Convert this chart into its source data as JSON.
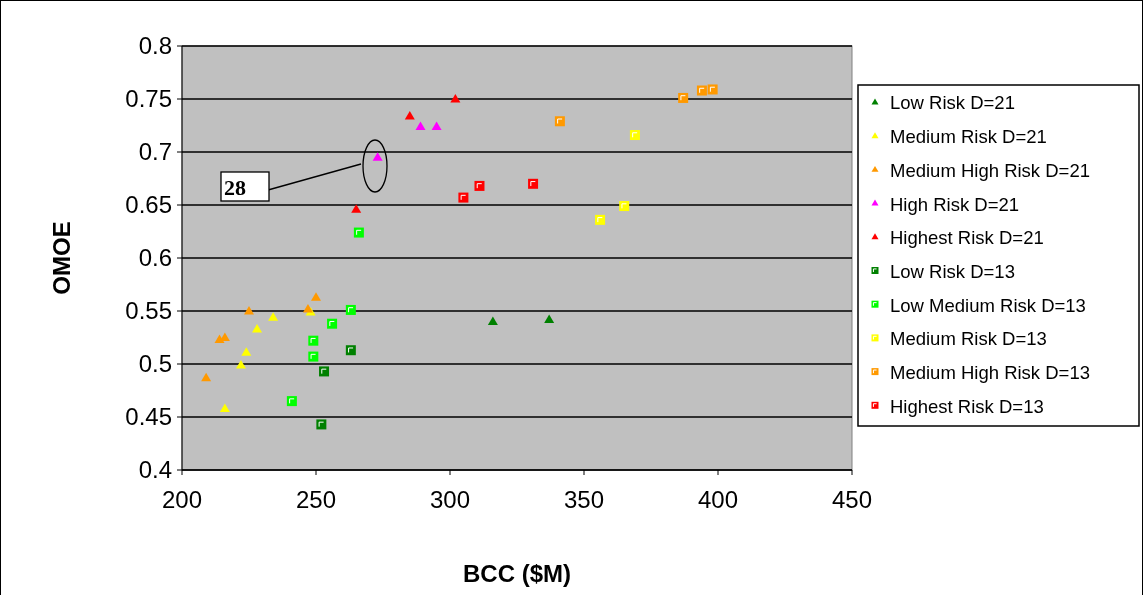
{
  "chart_data": {
    "type": "scatter",
    "xlabel": "BCC ($M)",
    "ylabel": "OMOE",
    "xlim": [
      200,
      450
    ],
    "xticks": [
      200,
      250,
      300,
      350,
      400,
      450
    ],
    "ylim": [
      0.4,
      0.8
    ],
    "yticks": [
      0.4,
      0.45,
      0.5,
      0.55,
      0.6,
      0.65,
      0.7,
      0.75,
      0.8
    ],
    "grid": "y",
    "legend": "right",
    "annotations": [
      "28"
    ],
    "series": [
      {
        "name": "Low Risk D=21",
        "color": "#008000",
        "marker": "triangle",
        "x": [
          316,
          337
        ],
        "values": [
          0.54,
          0.542
        ]
      },
      {
        "name": "Medium Risk D=21",
        "color": "#ffff00",
        "marker": "triangle",
        "x": [
          216,
          222,
          224,
          228,
          234,
          248
        ],
        "values": [
          0.458,
          0.499,
          0.511,
          0.533,
          0.544,
          0.549
        ]
      },
      {
        "name": "Medium High Risk D=21",
        "color": "#ff9900",
        "marker": "triangle",
        "x": [
          209,
          214,
          216,
          225,
          247,
          250
        ],
        "values": [
          0.487,
          0.523,
          0.525,
          0.55,
          0.552,
          0.563
        ]
      },
      {
        "name": "High Risk D=21",
        "color": "#ff00ff",
        "marker": "triangle",
        "x": [
          273,
          289,
          295
        ],
        "values": [
          0.695,
          0.724,
          0.724
        ]
      },
      {
        "name": "Highest Risk D=21",
        "color": "#ff0000",
        "marker": "triangle",
        "x": [
          265,
          285,
          302
        ],
        "values": [
          0.646,
          0.734,
          0.75
        ]
      },
      {
        "name": "Low Risk D=13",
        "color": "#008000",
        "marker": "square",
        "x": [
          252,
          253,
          263
        ],
        "values": [
          0.443,
          0.493,
          0.513
        ]
      },
      {
        "name": "Low Medium Risk D=13",
        "color": "#00ff00",
        "marker": "square",
        "x": [
          241,
          249,
          249,
          256,
          263,
          266
        ],
        "values": [
          0.465,
          0.507,
          0.522,
          0.538,
          0.551,
          0.624
        ]
      },
      {
        "name": "Medium Risk D=13",
        "color": "#ffff00",
        "marker": "square",
        "x": [
          356,
          365,
          369
        ],
        "values": [
          0.636,
          0.649,
          0.716
        ]
      },
      {
        "name": "Medium High Risk D=13",
        "color": "#ff9900",
        "marker": "square",
        "x": [
          341,
          387,
          394,
          398
        ],
        "values": [
          0.729,
          0.751,
          0.758,
          0.759
        ]
      },
      {
        "name": "Highest Risk D=13",
        "color": "#ff0000",
        "marker": "square",
        "x": [
          305,
          311,
          331
        ],
        "values": [
          0.657,
          0.668,
          0.67
        ]
      }
    ]
  }
}
